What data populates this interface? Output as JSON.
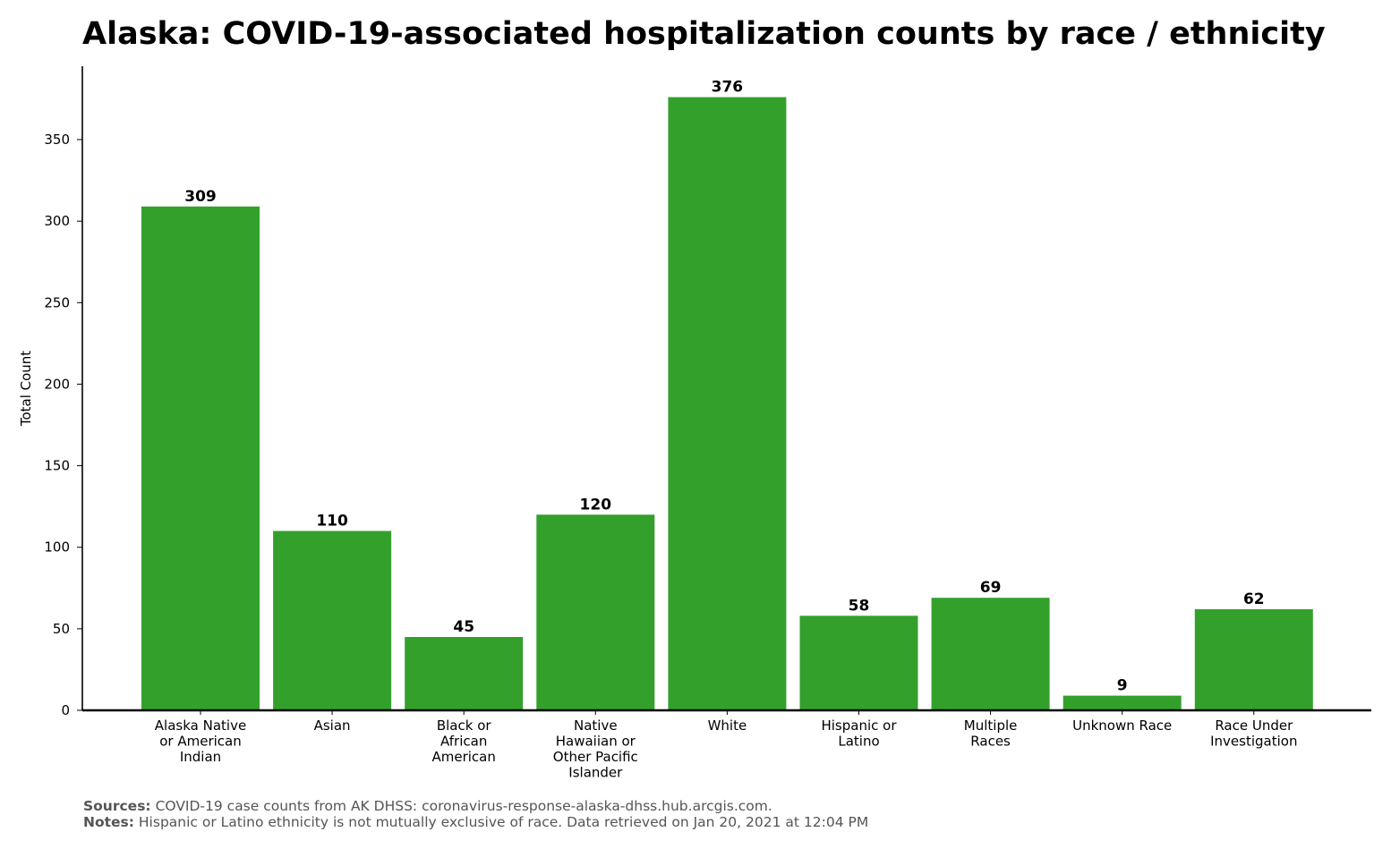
{
  "chart_data": {
    "type": "bar",
    "title": "Alaska: COVID-19-associated hospitalization counts by race / ethnicity",
    "xlabel": "",
    "ylabel": "Total Count",
    "ylim": [
      0,
      395
    ],
    "yticks": [
      0,
      50,
      100,
      150,
      200,
      250,
      300,
      350
    ],
    "grid": false,
    "categories": [
      [
        "Alaska Native",
        "or American",
        "Indian"
      ],
      [
        "Asian"
      ],
      [
        "Black or",
        "African",
        "American"
      ],
      [
        "Native",
        "Hawaiian or",
        "Other Pacific",
        "Islander"
      ],
      [
        "White"
      ],
      [
        "Hispanic or",
        "Latino"
      ],
      [
        "Multiple",
        "Races"
      ],
      [
        "Unknown Race"
      ],
      [
        "Race Under",
        "Investigation"
      ]
    ],
    "values": [
      309,
      110,
      45,
      120,
      376,
      58,
      69,
      9,
      62
    ],
    "bar_color": "#33a02c"
  },
  "footer": {
    "sources_label": "Sources:",
    "sources_text": "COVID-19 case counts from AK DHSS: coronavirus-response-alaska-dhss.hub.arcgis.com.",
    "notes_label": "Notes:",
    "notes_text": "Hispanic or Latino ethnicity is not mutually exclusive of race. Data retrieved on Jan 20, 2021 at 12:04 PM"
  }
}
